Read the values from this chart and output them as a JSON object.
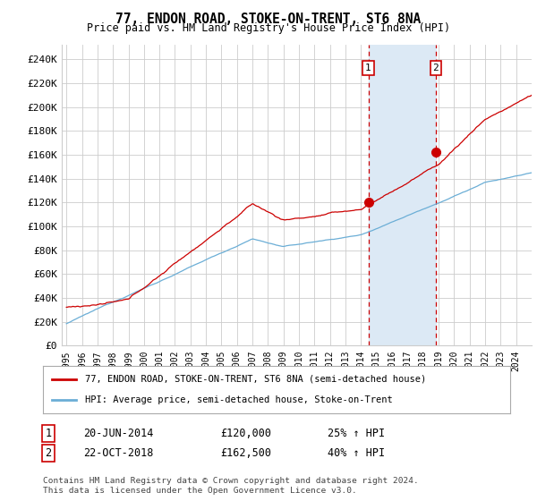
{
  "title": "77, ENDON ROAD, STOKE-ON-TRENT, ST6 8NA",
  "subtitle": "Price paid vs. HM Land Registry's House Price Index (HPI)",
  "ylabel_ticks": [
    "£0",
    "£20K",
    "£40K",
    "£60K",
    "£80K",
    "£100K",
    "£120K",
    "£140K",
    "£160K",
    "£180K",
    "£200K",
    "£220K",
    "£240K"
  ],
  "ytick_values": [
    0,
    20000,
    40000,
    60000,
    80000,
    100000,
    120000,
    140000,
    160000,
    180000,
    200000,
    220000,
    240000
  ],
  "ylim": [
    0,
    252000
  ],
  "xlim_start": 1994.7,
  "xlim_end": 2025.0,
  "sale1_date": 2014.47,
  "sale1_price": 120000,
  "sale1_label": "1",
  "sale1_text": "20-JUN-2014",
  "sale1_price_text": "£120,000",
  "sale1_hpi_text": "25% ↑ HPI",
  "sale2_date": 2018.81,
  "sale2_price": 162500,
  "sale2_label": "2",
  "sale2_text": "22-OCT-2018",
  "sale2_price_text": "£162,500",
  "sale2_hpi_text": "40% ↑ HPI",
  "legend_line1": "77, ENDON ROAD, STOKE-ON-TRENT, ST6 8NA (semi-detached house)",
  "legend_line2": "HPI: Average price, semi-detached house, Stoke-on-Trent",
  "footer": "Contains HM Land Registry data © Crown copyright and database right 2024.\nThis data is licensed under the Open Government Licence v3.0.",
  "hpi_color": "#6baed6",
  "price_color": "#cc0000",
  "shade_color": "#dce9f5",
  "grid_color": "#cccccc",
  "bg_color": "#ffffff"
}
